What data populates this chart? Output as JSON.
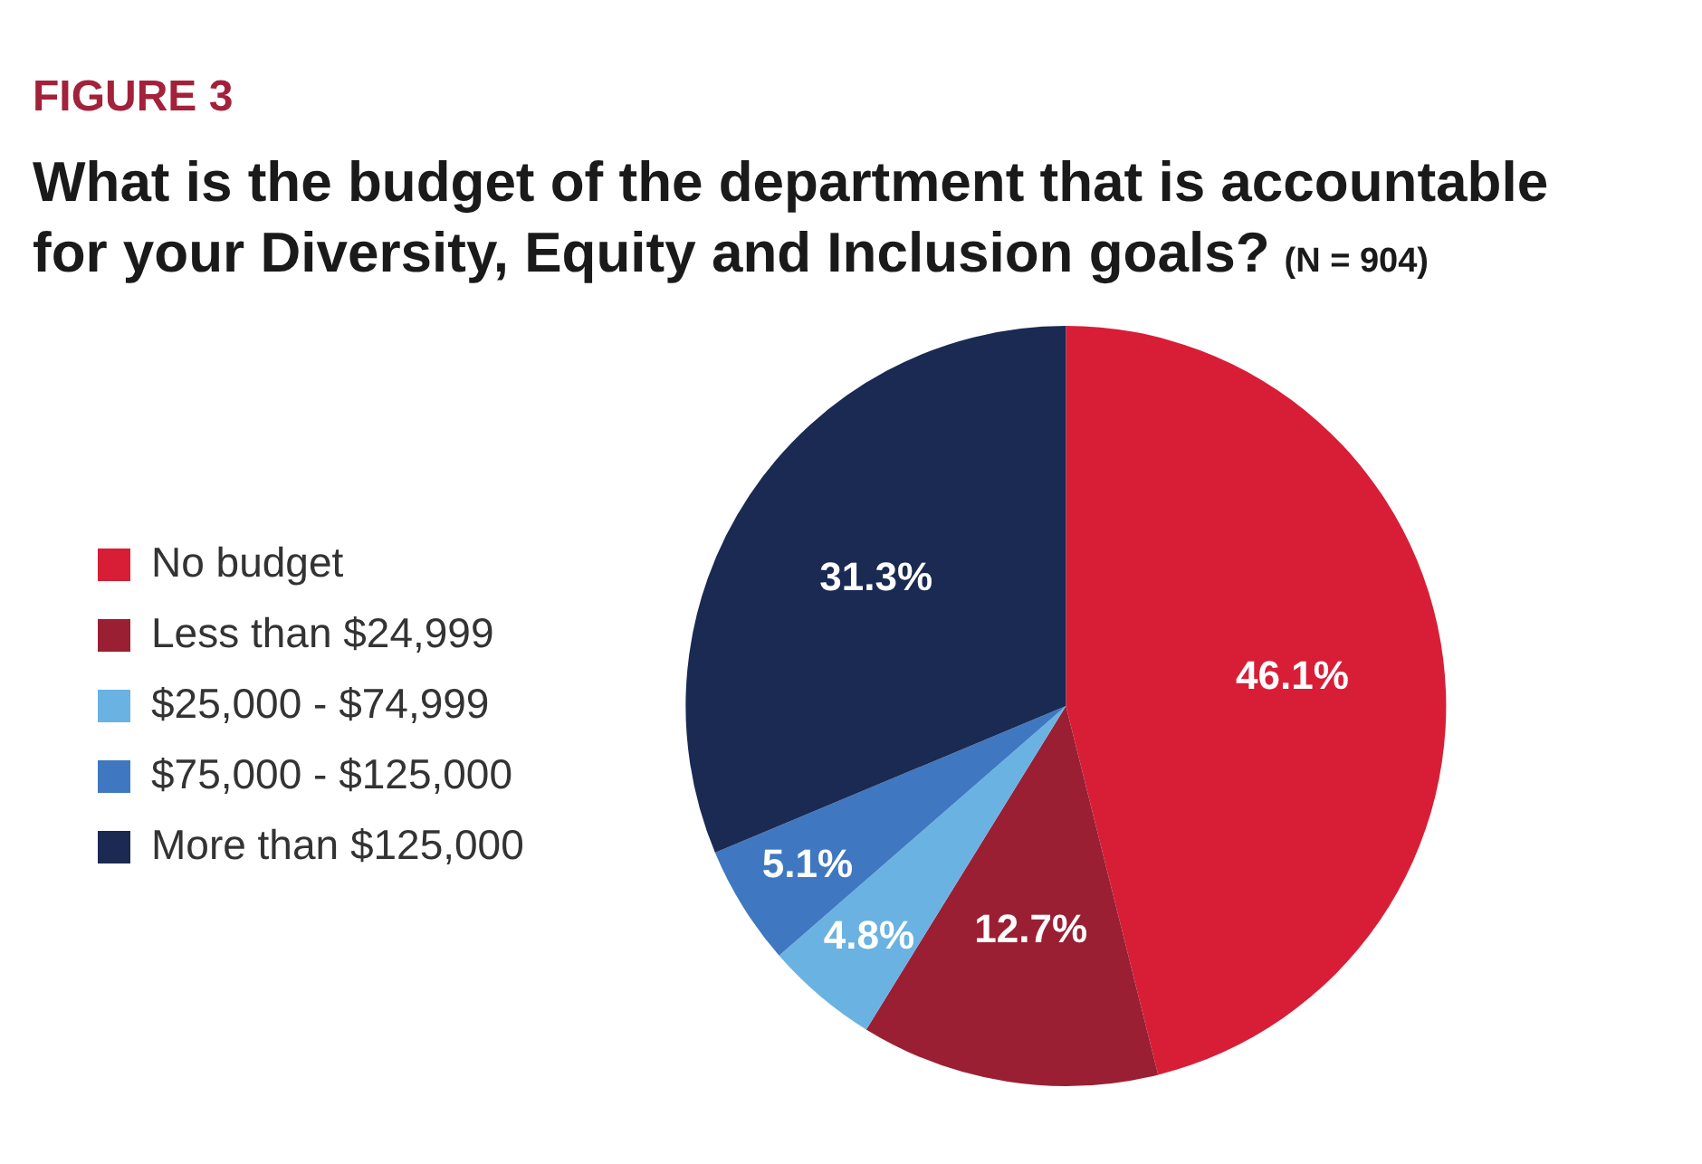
{
  "chart_data": {
    "type": "pie",
    "title": "FIGURE 3",
    "subtitle": "What is the budget of the department that is accountable for your Diversity, Equity and Inclusion goals?",
    "annotations": [
      "(N = 904)"
    ],
    "categories": [
      "No budget",
      "Less than $24,999",
      "$25,000 - $74,999",
      "$75,000 - $125,000",
      "More than $125,000"
    ],
    "values": [
      46.1,
      12.7,
      4.8,
      5.1,
      31.3
    ],
    "colors": [
      "#d81e36",
      "#9b1f33",
      "#6ab2e2",
      "#3f78c1",
      "#1a2a52"
    ],
    "value_labels": [
      "46.1%",
      "12.7%",
      "4.8%",
      "5.1%",
      "31.3%"
    ],
    "legend": "left"
  }
}
